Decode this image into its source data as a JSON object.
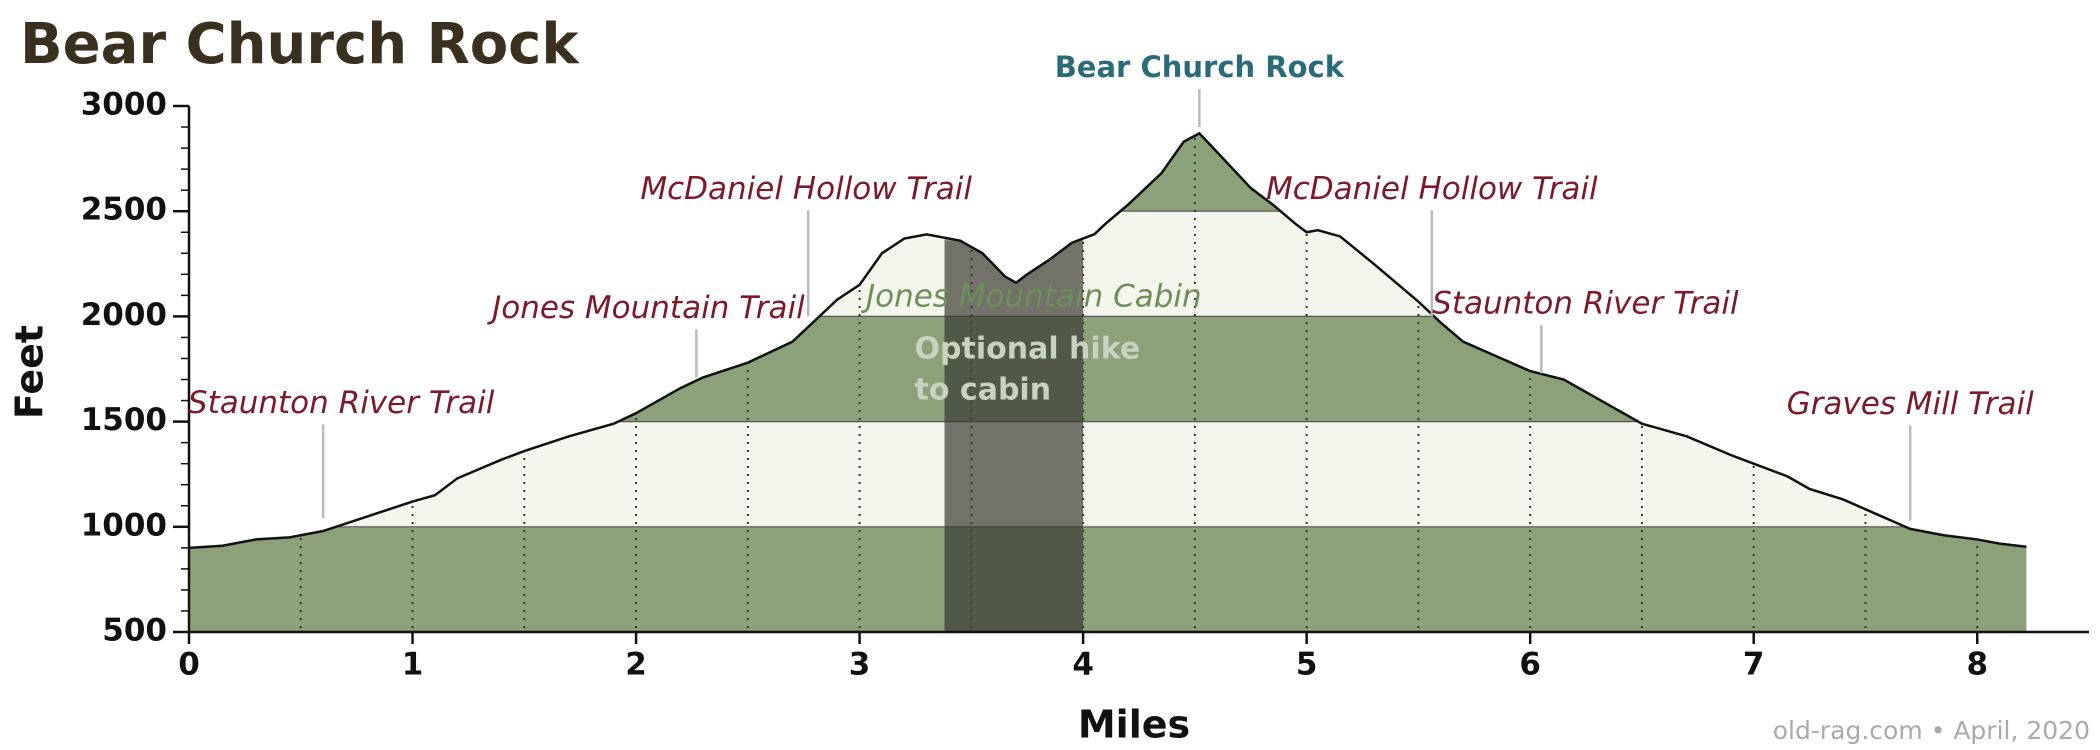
{
  "chart_data": {
    "type": "area",
    "title": "Bear Church Rock",
    "x_label": "Miles",
    "y_label": "Feet",
    "credit": "old-rag.com • April, 2020",
    "x": [
      0,
      0.15,
      0.3,
      0.45,
      0.6,
      0.8,
      1.0,
      1.1,
      1.2,
      1.4,
      1.5,
      1.7,
      1.9,
      2.0,
      2.2,
      2.3,
      2.5,
      2.7,
      2.8,
      2.9,
      3.0,
      3.1,
      3.2,
      3.3,
      3.45,
      3.55,
      3.65,
      3.7,
      3.75,
      3.85,
      3.95,
      4.05,
      4.1,
      4.2,
      4.35,
      4.45,
      4.52,
      4.6,
      4.75,
      4.85,
      4.95,
      5.0,
      5.05,
      5.15,
      5.3,
      5.5,
      5.6,
      5.7,
      5.85,
      6.0,
      6.15,
      6.3,
      6.5,
      6.7,
      6.9,
      7.0,
      7.15,
      7.25,
      7.4,
      7.55,
      7.7,
      7.85,
      8.0,
      8.1,
      8.22
    ],
    "values": [
      900,
      910,
      940,
      950,
      980,
      1050,
      1120,
      1150,
      1230,
      1320,
      1360,
      1430,
      1490,
      1540,
      1660,
      1710,
      1780,
      1880,
      1980,
      2080,
      2150,
      2300,
      2370,
      2390,
      2360,
      2300,
      2190,
      2160,
      2200,
      2270,
      2350,
      2390,
      2440,
      2530,
      2680,
      2830,
      2870,
      2780,
      2610,
      2530,
      2440,
      2400,
      2410,
      2380,
      2250,
      2070,
      1970,
      1880,
      1810,
      1740,
      1700,
      1610,
      1490,
      1430,
      1340,
      1300,
      1240,
      1180,
      1130,
      1060,
      990,
      960,
      940,
      920,
      905
    ],
    "line_color": "#111111",
    "band_colors": [
      "#8aa17a",
      "#f4f5ec"
    ],
    "xlim": [
      0,
      8.5
    ],
    "ylim": [
      500,
      3000
    ],
    "xticks": [
      0,
      1,
      2,
      3,
      4,
      5,
      6,
      7,
      8
    ],
    "yticks": [
      500,
      1000,
      1500,
      2000,
      2500,
      3000
    ],
    "yminorticks": [
      600,
      700,
      800,
      900,
      1100,
      1200,
      1300,
      1400,
      1600,
      1700,
      1800,
      1900,
      2100,
      2200,
      2300,
      2400,
      2600,
      2700,
      2800,
      2900
    ],
    "x_gridlines": [
      0.5,
      1,
      1.5,
      2,
      2.5,
      3,
      3.5,
      4,
      4.5,
      5,
      5.5,
      6,
      6.5,
      7,
      7.5,
      8
    ],
    "annotations": [
      {
        "text": "Staunton River Trail",
        "x": 0.6,
        "y": 1040,
        "color": "#7a1a2a"
      },
      {
        "text": "Jones Mountain Trail",
        "x": 2.27,
        "y": 1710,
        "color": "#7a1a2a"
      },
      {
        "text": "McDaniel Hollow Trail",
        "x": 2.77,
        "y": 2000,
        "color": "#7a1a2a"
      },
      {
        "text": "Bear Church Rock",
        "x": 4.52,
        "y": 2900,
        "color": "#2a6b7a"
      },
      {
        "text": "McDaniel Hollow Trail",
        "x": 5.56,
        "y": 2000,
        "color": "#7a1a2a"
      },
      {
        "text": "Staunton River Trail",
        "x": 6.05,
        "y": 1730,
        "color": "#7a1a2a"
      },
      {
        "text": "Graves Mill Trail",
        "x": 7.7,
        "y": 1030,
        "color": "#7a1a2a"
      }
    ],
    "cabin": {
      "text": "Jones Mountain Cabin",
      "color": "#6e8f5a"
    },
    "optional": {
      "x": [
        3.38,
        4.0
      ],
      "label": [
        "Optional hike",
        "to cabin"
      ],
      "color": "#3a3a30"
    }
  }
}
